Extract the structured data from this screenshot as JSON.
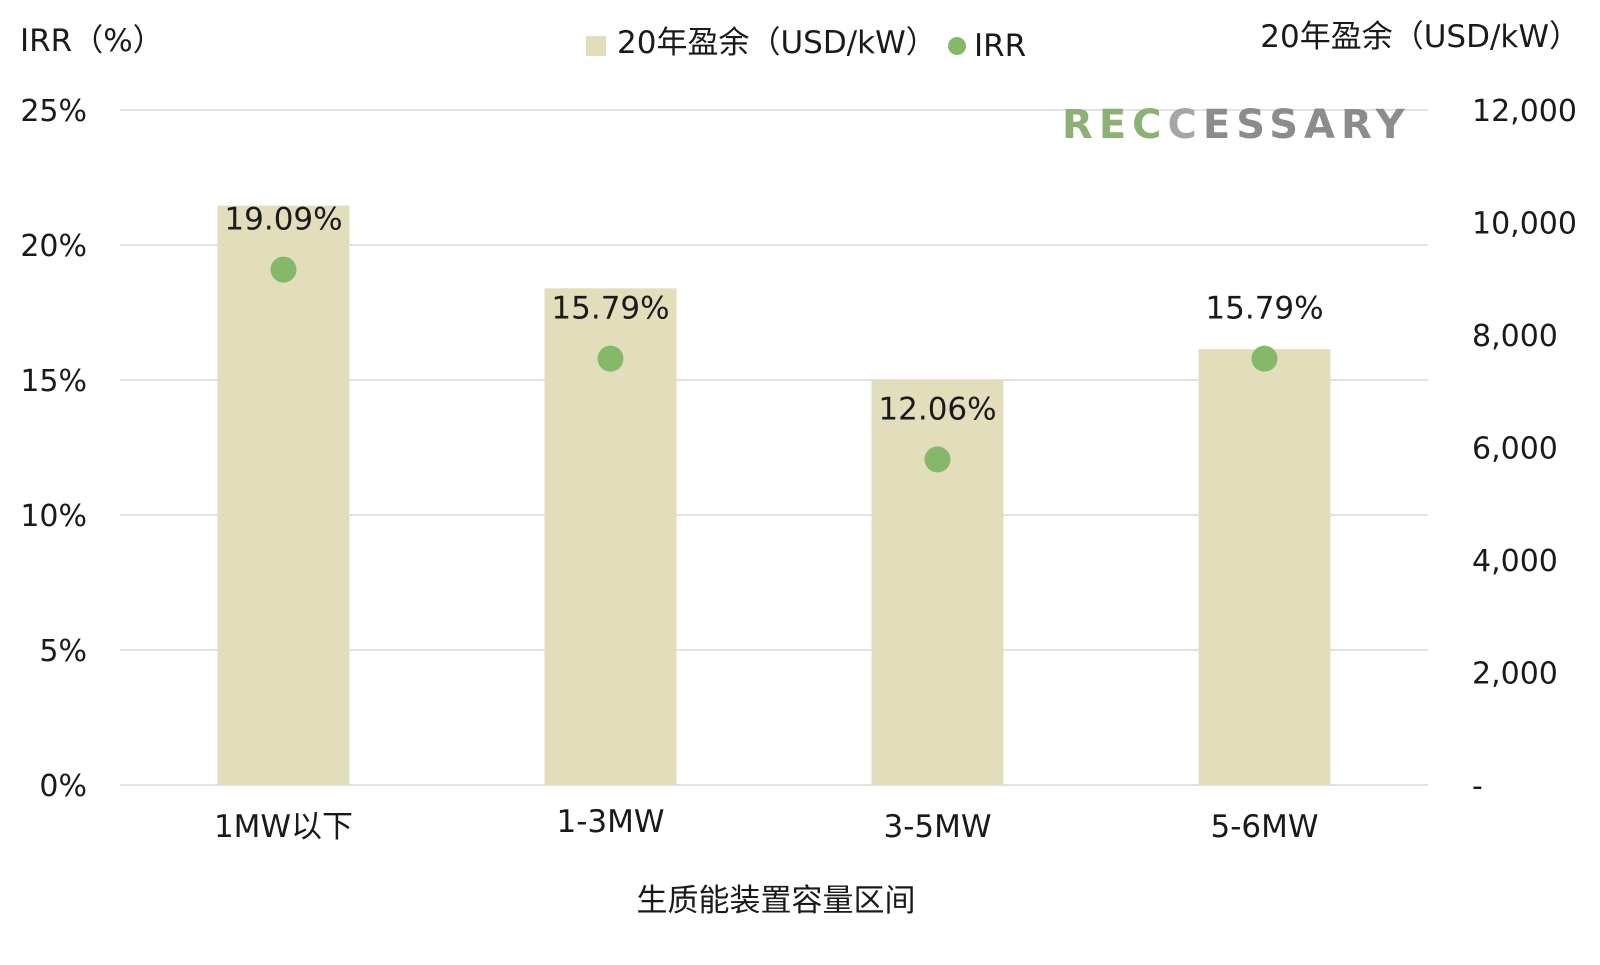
{
  "chart_data": {
    "type": "bar",
    "categories": [
      "1MW以下",
      "1-3MW",
      "3-5MW",
      "5-6MW"
    ],
    "series": [
      {
        "name": "20年盈余（USD/kW）",
        "type": "bar",
        "axis": "right",
        "values": [
          10300,
          8830,
          7200,
          7750
        ]
      },
      {
        "name": "IRR",
        "type": "scatter",
        "axis": "left",
        "values": [
          19.09,
          15.79,
          12.06,
          15.79
        ],
        "labels": [
          "19.09%",
          "15.79%",
          "12.06%",
          "15.79%"
        ]
      }
    ],
    "xlabel": "生质能装置容量区间",
    "ylabel_left": "IRR（%）",
    "ylabel_right": "20年盈余（USD/kW）",
    "ylim_left": [
      0,
      25
    ],
    "ylim_right": [
      0,
      12000
    ],
    "left_ticks": [
      "0%",
      "5%",
      "10%",
      "15%",
      "20%",
      "25%"
    ],
    "right_ticks": [
      "-",
      "2,000",
      "4,000",
      "6,000",
      "8,000",
      "10,000",
      "12,000"
    ],
    "legend_position": "top-center",
    "grid": true
  },
  "colors": {
    "bar": "#e2ddba",
    "dot": "#86b86a",
    "grid": "#d9d9d9"
  },
  "watermark": {
    "letters": [
      "R",
      "E",
      "C",
      "C",
      "E",
      "S",
      "S",
      "A",
      "R",
      "Y"
    ],
    "colors": [
      "#8bb174",
      "#8bb174",
      "#8bb174",
      "#a6a6a6",
      "#8c8c8c",
      "#8c8c8c",
      "#8c8c8c",
      "#8c8c8c",
      "#8c8c8c",
      "#8c8c8c"
    ]
  }
}
